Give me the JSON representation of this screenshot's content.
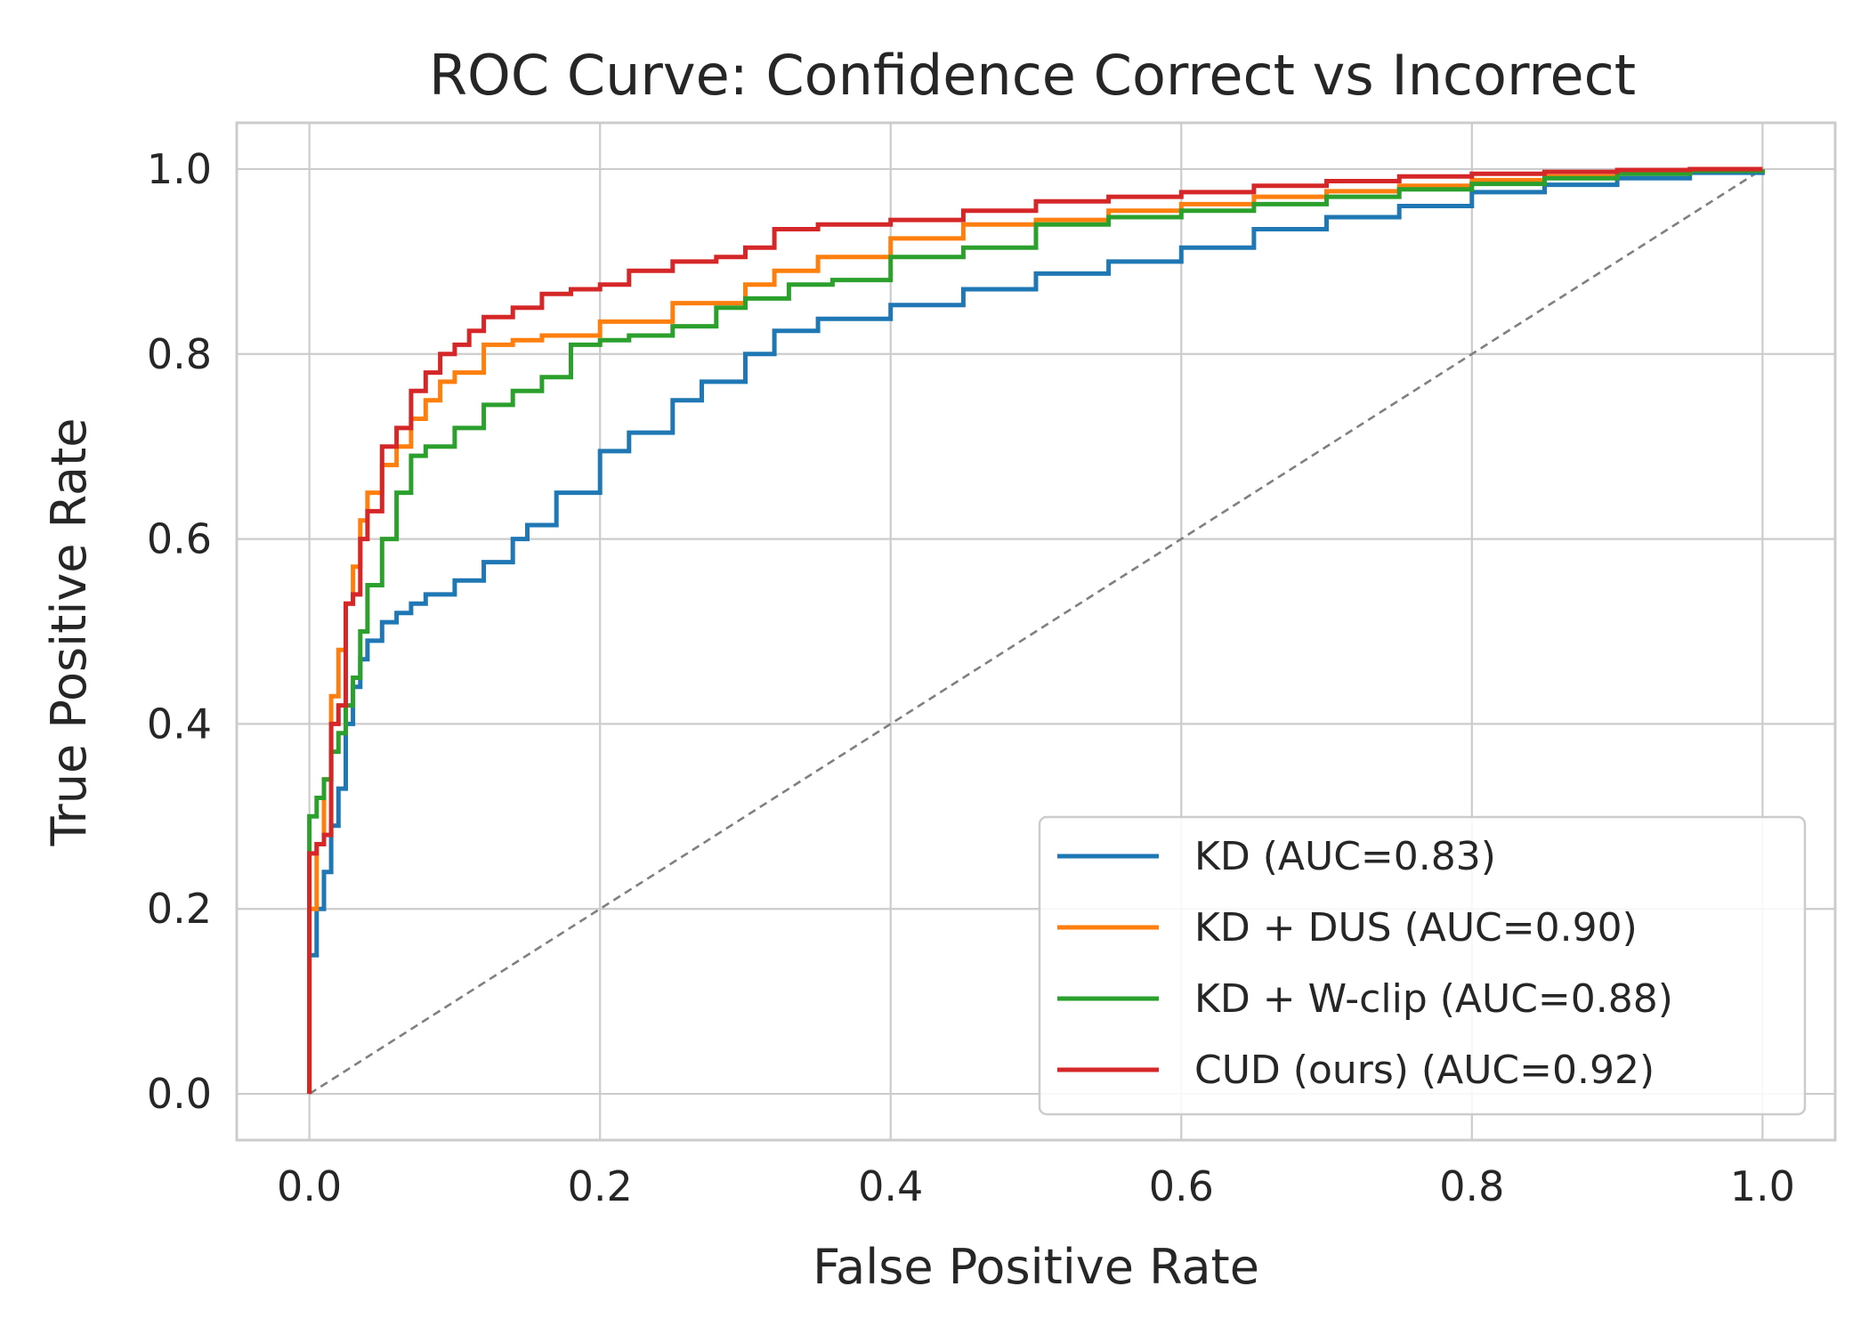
{
  "chart_data": {
    "type": "line",
    "title": "ROC Curve: Confidence Correct vs Incorrect",
    "xlabel": "False Positive Rate",
    "ylabel": "True Positive Rate",
    "xlim": [
      -0.05,
      1.05
    ],
    "ylim": [
      -0.05,
      1.05
    ],
    "xticks": [
      0.0,
      0.2,
      0.4,
      0.6,
      0.8,
      1.0
    ],
    "yticks": [
      0.0,
      0.2,
      0.4,
      0.6,
      0.8,
      1.0
    ],
    "xtick_labels": [
      "0.0",
      "0.2",
      "0.4",
      "0.6",
      "0.8",
      "1.0"
    ],
    "ytick_labels": [
      "0.0",
      "0.2",
      "0.4",
      "0.6",
      "0.8",
      "1.0"
    ],
    "grid": true,
    "legend_position": "lower-right",
    "diagonal": {
      "x": [
        0,
        1
      ],
      "y": [
        0,
        1
      ],
      "color": "#808080",
      "style": "dashed"
    },
    "series": [
      {
        "name": "KD (AUC=0.83)",
        "color": "#1f77b4",
        "auc": 0.83,
        "x": [
          0.0,
          0.0,
          0.005,
          0.01,
          0.015,
          0.02,
          0.025,
          0.03,
          0.035,
          0.04,
          0.05,
          0.06,
          0.07,
          0.08,
          0.1,
          0.12,
          0.14,
          0.15,
          0.17,
          0.2,
          0.22,
          0.25,
          0.27,
          0.3,
          0.32,
          0.35,
          0.4,
          0.45,
          0.5,
          0.55,
          0.6,
          0.65,
          0.7,
          0.75,
          0.8,
          0.85,
          0.9,
          0.95,
          1.0
        ],
        "y": [
          0.0,
          0.15,
          0.2,
          0.24,
          0.29,
          0.33,
          0.4,
          0.44,
          0.47,
          0.49,
          0.51,
          0.52,
          0.53,
          0.54,
          0.555,
          0.575,
          0.6,
          0.615,
          0.65,
          0.695,
          0.715,
          0.75,
          0.77,
          0.8,
          0.825,
          0.838,
          0.853,
          0.87,
          0.887,
          0.9,
          0.915,
          0.935,
          0.948,
          0.96,
          0.975,
          0.983,
          0.99,
          0.996,
          1.0
        ]
      },
      {
        "name": "KD + DUS (AUC=0.90)",
        "color": "#ff7f0e",
        "auc": 0.9,
        "x": [
          0.0,
          0.0,
          0.005,
          0.01,
          0.015,
          0.02,
          0.025,
          0.03,
          0.035,
          0.04,
          0.05,
          0.06,
          0.07,
          0.08,
          0.09,
          0.1,
          0.12,
          0.14,
          0.16,
          0.2,
          0.25,
          0.3,
          0.32,
          0.35,
          0.4,
          0.45,
          0.5,
          0.55,
          0.6,
          0.65,
          0.7,
          0.75,
          0.8,
          0.85,
          0.9,
          0.95,
          1.0
        ],
        "y": [
          0.0,
          0.2,
          0.27,
          0.34,
          0.43,
          0.48,
          0.53,
          0.57,
          0.62,
          0.65,
          0.68,
          0.7,
          0.73,
          0.75,
          0.77,
          0.78,
          0.81,
          0.815,
          0.82,
          0.835,
          0.855,
          0.875,
          0.89,
          0.905,
          0.925,
          0.94,
          0.945,
          0.955,
          0.962,
          0.97,
          0.976,
          0.982,
          0.988,
          0.992,
          0.996,
          0.998,
          1.0
        ]
      },
      {
        "name": "KD + W-clip (AUC=0.88)",
        "color": "#2ca02c",
        "auc": 0.88,
        "x": [
          0.0,
          0.0,
          0.005,
          0.01,
          0.015,
          0.02,
          0.025,
          0.03,
          0.035,
          0.04,
          0.05,
          0.06,
          0.07,
          0.08,
          0.1,
          0.12,
          0.14,
          0.16,
          0.18,
          0.2,
          0.22,
          0.25,
          0.28,
          0.3,
          0.33,
          0.36,
          0.4,
          0.45,
          0.5,
          0.55,
          0.6,
          0.65,
          0.7,
          0.75,
          0.8,
          0.85,
          0.9,
          0.95,
          1.0
        ],
        "y": [
          0.0,
          0.3,
          0.32,
          0.34,
          0.37,
          0.39,
          0.42,
          0.45,
          0.5,
          0.55,
          0.6,
          0.65,
          0.69,
          0.7,
          0.72,
          0.745,
          0.76,
          0.775,
          0.81,
          0.815,
          0.82,
          0.83,
          0.85,
          0.86,
          0.875,
          0.88,
          0.905,
          0.915,
          0.94,
          0.948,
          0.955,
          0.962,
          0.97,
          0.978,
          0.984,
          0.99,
          0.995,
          0.998,
          1.0
        ]
      },
      {
        "name": "CUD (ours) (AUC=0.92)",
        "color": "#d62728",
        "auc": 0.92,
        "x": [
          0.0,
          0.0,
          0.005,
          0.01,
          0.015,
          0.02,
          0.025,
          0.03,
          0.035,
          0.04,
          0.05,
          0.06,
          0.07,
          0.08,
          0.09,
          0.1,
          0.11,
          0.12,
          0.14,
          0.16,
          0.18,
          0.2,
          0.22,
          0.25,
          0.28,
          0.3,
          0.32,
          0.35,
          0.4,
          0.45,
          0.5,
          0.55,
          0.6,
          0.65,
          0.7,
          0.75,
          0.8,
          0.85,
          0.9,
          0.95,
          1.0
        ],
        "y": [
          0.0,
          0.26,
          0.27,
          0.28,
          0.4,
          0.42,
          0.53,
          0.54,
          0.6,
          0.63,
          0.7,
          0.72,
          0.76,
          0.78,
          0.8,
          0.81,
          0.825,
          0.84,
          0.85,
          0.865,
          0.87,
          0.875,
          0.89,
          0.9,
          0.905,
          0.915,
          0.935,
          0.94,
          0.945,
          0.955,
          0.965,
          0.97,
          0.975,
          0.982,
          0.987,
          0.992,
          0.995,
          0.997,
          0.999,
          1.0,
          1.0
        ]
      }
    ]
  }
}
